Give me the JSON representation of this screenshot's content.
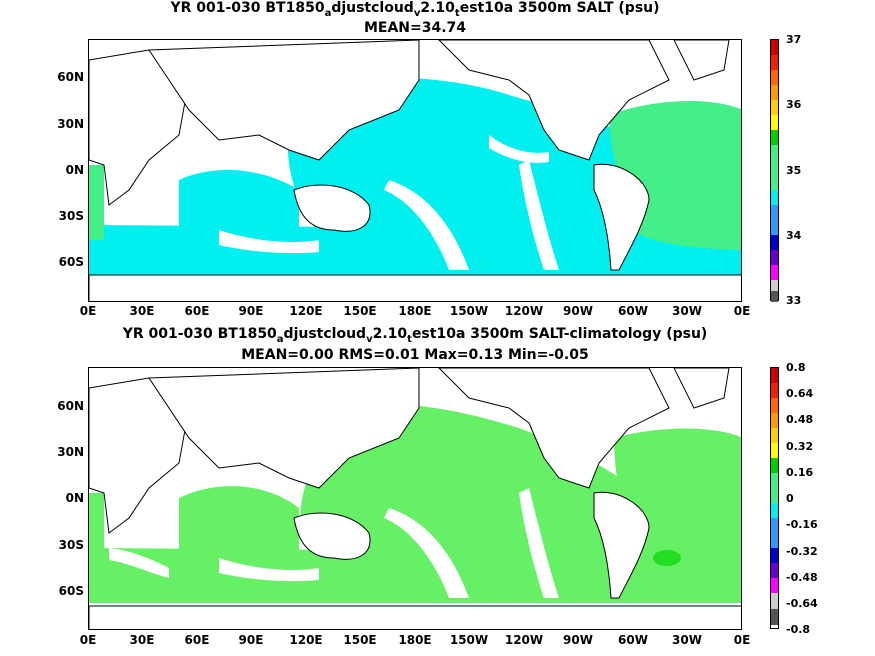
{
  "top": {
    "title_pre": "YR 001-030 BT1850",
    "title_sub1": "a",
    "title_mid1": "djustcloud",
    "title_sub2": "v",
    "title_mid2": "2.10",
    "title_sub3": "t",
    "title_post": "est10a 3500m SALT (psu)",
    "stats": "MEAN=34.74",
    "colorbar_labels": [
      "37",
      "36",
      "35",
      "34",
      "33"
    ]
  },
  "bottom": {
    "title_pre": "YR 001-030 BT1850",
    "title_sub1": "a",
    "title_mid1": "djustcloud",
    "title_sub2": "v",
    "title_mid2": "2.10",
    "title_sub3": "t",
    "title_post": "est10a 3500m SALT-climatology (psu)",
    "stats": "MEAN=0.00   RMS=0.01   Max=0.13   Min=-0.05",
    "colorbar_labels": [
      "0.8",
      "0.64",
      "0.48",
      "0.32",
      "0.16",
      "0",
      "-0.16",
      "-0.32",
      "-0.48",
      "-0.64",
      "-0.8"
    ]
  },
  "lat_labels": [
    "60N",
    "30N",
    "0N",
    "30S",
    "60S"
  ],
  "lon_labels": [
    "0E",
    "30E",
    "60E",
    "90E",
    "120E",
    "150E",
    "180E",
    "150W",
    "120W",
    "90W",
    "60W",
    "30W",
    "0E"
  ],
  "colors": {
    "cyan_field": "#00f0f0",
    "green_field": "#44ee88",
    "light_green": "#66f066",
    "bright_green": "#22dd22",
    "colorbar": [
      "#cc0000",
      "#ee2200",
      "#ff6600",
      "#ff9900",
      "#ffcc00",
      "#ffff00",
      "#00cc00",
      "#44ee88",
      "#00f0f0",
      "#3399ff",
      "#0000cc",
      "#6600cc",
      "#ff00ff",
      "#cccccc",
      "#555555"
    ]
  }
}
